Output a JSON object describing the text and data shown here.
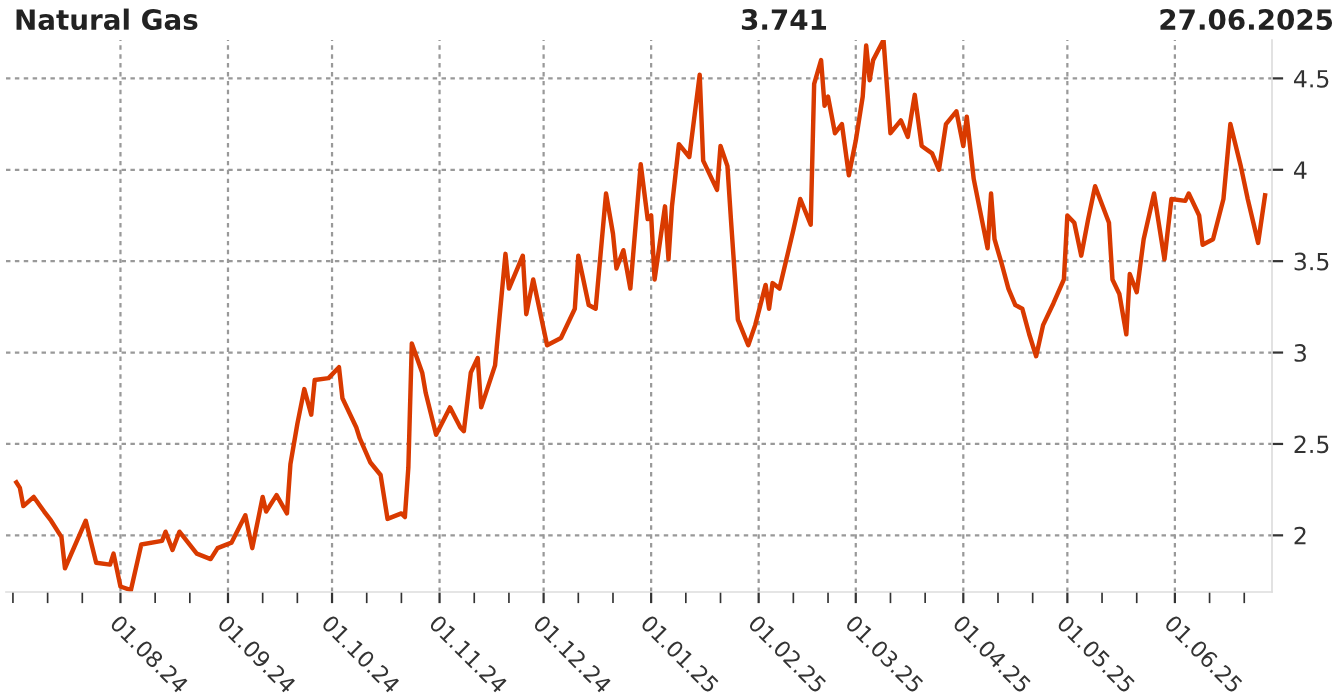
{
  "chart_data": {
    "type": "line",
    "title": "Natural Gas",
    "annotations": [
      "3.741",
      "27.06.2025"
    ],
    "x": [
      "2024-07-02",
      "2024-07-03",
      "2024-07-04",
      "2024-07-07",
      "2024-07-10",
      "2024-07-12",
      "2024-07-15",
      "2024-07-16",
      "2024-07-22",
      "2024-07-25",
      "2024-07-29",
      "2024-07-30",
      "2024-08-01",
      "2024-08-04",
      "2024-08-07",
      "2024-08-13",
      "2024-08-14",
      "2024-08-16",
      "2024-08-18",
      "2024-08-23",
      "2024-08-27",
      "2024-08-29",
      "2024-09-02",
      "2024-09-06",
      "2024-09-08",
      "2024-09-11",
      "2024-09-12",
      "2024-09-15",
      "2024-09-18",
      "2024-09-19",
      "2024-09-21",
      "2024-09-23",
      "2024-09-24",
      "2024-09-25",
      "2024-09-26",
      "2024-09-30",
      "2024-10-03",
      "2024-10-04",
      "2024-10-08",
      "2024-10-09",
      "2024-10-12",
      "2024-10-15",
      "2024-10-17",
      "2024-10-21",
      "2024-10-22",
      "2024-10-23",
      "2024-10-24",
      "2024-10-27",
      "2024-10-28",
      "2024-10-31",
      "2024-11-04",
      "2024-11-07",
      "2024-11-08",
      "2024-11-10",
      "2024-11-12",
      "2024-11-13",
      "2024-11-17",
      "2024-11-20",
      "2024-11-21",
      "2024-11-25",
      "2024-11-26",
      "2024-11-28",
      "2024-12-02",
      "2024-12-06",
      "2024-12-10",
      "2024-12-11",
      "2024-12-14",
      "2024-12-16",
      "2024-12-19",
      "2024-12-21",
      "2024-12-22",
      "2024-12-24",
      "2024-12-26",
      "2024-12-29",
      "2024-12-31",
      "2025-01-01",
      "2025-01-02",
      "2025-01-05",
      "2025-01-06",
      "2025-01-07",
      "2025-01-09",
      "2025-01-12",
      "2025-01-15",
      "2025-01-16",
      "2025-01-20",
      "2025-01-21",
      "2025-01-23",
      "2025-01-24",
      "2025-01-26",
      "2025-01-29",
      "2025-01-31",
      "2025-02-03",
      "2025-02-04",
      "2025-02-05",
      "2025-02-07",
      "2025-02-09",
      "2025-02-11",
      "2025-02-13",
      "2025-02-16",
      "2025-02-17",
      "2025-02-19",
      "2025-02-20",
      "2025-02-21",
      "2025-02-23",
      "2025-02-25",
      "2025-02-27",
      "2025-03-01",
      "2025-03-03",
      "2025-03-04",
      "2025-03-05",
      "2025-03-06",
      "2025-03-09",
      "2025-03-11",
      "2025-03-14",
      "2025-03-16",
      "2025-03-18",
      "2025-03-20",
      "2025-03-23",
      "2025-03-25",
      "2025-03-27",
      "2025-03-30",
      "2025-04-01",
      "2025-04-02",
      "2025-04-04",
      "2025-04-06",
      "2025-04-08",
      "2025-04-09",
      "2025-04-10",
      "2025-04-12",
      "2025-04-14",
      "2025-04-16",
      "2025-04-18",
      "2025-04-20",
      "2025-04-22",
      "2025-04-24",
      "2025-04-27",
      "2025-04-30",
      "2025-05-01",
      "2025-05-03",
      "2025-05-05",
      "2025-05-07",
      "2025-05-09",
      "2025-05-13",
      "2025-05-14",
      "2025-05-16",
      "2025-05-18",
      "2025-05-19",
      "2025-05-21",
      "2025-05-23",
      "2025-05-26",
      "2025-05-29",
      "2025-05-31",
      "2025-06-04",
      "2025-06-05",
      "2025-06-08",
      "2025-06-09",
      "2025-06-12",
      "2025-06-15",
      "2025-06-17",
      "2025-06-20",
      "2025-06-22",
      "2025-06-25",
      "2025-06-27"
    ],
    "series": [
      {
        "color": "#d93a00",
        "values": [
          2.29,
          2.26,
          2.16,
          2.21,
          2.13,
          2.08,
          1.99,
          1.82,
          2.08,
          1.85,
          1.84,
          1.9,
          1.72,
          1.7,
          1.95,
          1.97,
          2.02,
          1.92,
          2.02,
          1.9,
          1.87,
          1.93,
          1.96,
          2.11,
          1.93,
          2.21,
          2.13,
          2.22,
          2.12,
          2.39,
          2.61,
          2.8,
          2.73,
          2.66,
          2.85,
          2.86,
          2.92,
          2.75,
          2.59,
          2.53,
          2.4,
          2.33,
          2.09,
          2.12,
          2.1,
          2.37,
          3.05,
          2.89,
          2.78,
          2.55,
          2.7,
          2.59,
          2.57,
          2.89,
          2.97,
          2.7,
          2.93,
          3.54,
          3.35,
          3.53,
          3.21,
          3.4,
          3.04,
          3.08,
          3.24,
          3.53,
          3.26,
          3.24,
          3.87,
          3.65,
          3.46,
          3.56,
          3.35,
          4.03,
          3.73,
          3.75,
          3.4,
          3.8,
          3.51,
          3.8,
          4.14,
          4.07,
          4.52,
          4.05,
          3.89,
          4.13,
          4.02,
          3.73,
          3.18,
          3.04,
          3.15,
          3.37,
          3.24,
          3.38,
          3.35,
          3.51,
          3.67,
          3.84,
          3.7,
          4.47,
          4.6,
          4.35,
          4.4,
          4.2,
          4.25,
          3.97,
          4.16,
          4.4,
          4.68,
          4.49,
          4.6,
          4.71,
          4.2,
          4.27,
          4.18,
          4.41,
          4.13,
          4.09,
          4.0,
          4.25,
          4.32,
          4.13,
          4.29,
          3.95,
          3.76,
          3.57,
          3.87,
          3.62,
          3.49,
          3.35,
          3.26,
          3.24,
          3.1,
          2.98,
          3.15,
          3.27,
          3.4,
          3.75,
          3.71,
          3.53,
          3.73,
          3.91,
          3.71,
          3.4,
          3.32,
          3.1,
          3.43,
          3.33,
          3.62,
          3.87,
          3.51,
          3.84,
          3.83,
          3.87,
          3.75,
          3.59,
          3.62,
          3.84,
          4.25,
          4.02,
          3.84,
          3.6,
          3.86
        ]
      }
    ],
    "xlim": [
      "2024-06-29",
      "2025-06-29"
    ],
    "ylim": [
      1.69,
      4.71
    ],
    "xticks": [
      {
        "value": "2024-07-01",
        "label": null
      },
      {
        "value": "2024-07-11",
        "label": null
      },
      {
        "value": "2024-07-21",
        "label": null
      },
      {
        "value": "2024-08-01",
        "label": "01.08.24"
      },
      {
        "value": "2024-08-11",
        "label": null
      },
      {
        "value": "2024-08-21",
        "label": null
      },
      {
        "value": "2024-09-01",
        "label": "01.09.24"
      },
      {
        "value": "2024-09-11",
        "label": null
      },
      {
        "value": "2024-09-21",
        "label": null
      },
      {
        "value": "2024-10-01",
        "label": "01.10.24"
      },
      {
        "value": "2024-10-11",
        "label": null
      },
      {
        "value": "2024-10-21",
        "label": null
      },
      {
        "value": "2024-11-01",
        "label": "01.11.24"
      },
      {
        "value": "2024-11-11",
        "label": null
      },
      {
        "value": "2024-11-21",
        "label": null
      },
      {
        "value": "2024-12-01",
        "label": "01.12.24"
      },
      {
        "value": "2024-12-11",
        "label": null
      },
      {
        "value": "2024-12-21",
        "label": null
      },
      {
        "value": "2025-01-01",
        "label": "01.01.25"
      },
      {
        "value": "2025-01-11",
        "label": null
      },
      {
        "value": "2025-01-21",
        "label": null
      },
      {
        "value": "2025-02-01",
        "label": "01.02.25"
      },
      {
        "value": "2025-02-11",
        "label": null
      },
      {
        "value": "2025-02-21",
        "label": null
      },
      {
        "value": "2025-03-01",
        "label": "01.03.25"
      },
      {
        "value": "2025-03-11",
        "label": null
      },
      {
        "value": "2025-03-21",
        "label": null
      },
      {
        "value": "2025-04-01",
        "label": "01.04.25"
      },
      {
        "value": "2025-04-11",
        "label": null
      },
      {
        "value": "2025-04-21",
        "label": null
      },
      {
        "value": "2025-05-01",
        "label": "01.05.25"
      },
      {
        "value": "2025-05-11",
        "label": null
      },
      {
        "value": "2025-05-21",
        "label": null
      },
      {
        "value": "2025-06-01",
        "label": "01.06.25"
      },
      {
        "value": "2025-06-11",
        "label": null
      },
      {
        "value": "2025-06-21",
        "label": null
      }
    ],
    "yticks": [
      2,
      2.5,
      3,
      3.5,
      4,
      4.5
    ],
    "grid": true,
    "marker": "none",
    "line_style": "solid"
  }
}
